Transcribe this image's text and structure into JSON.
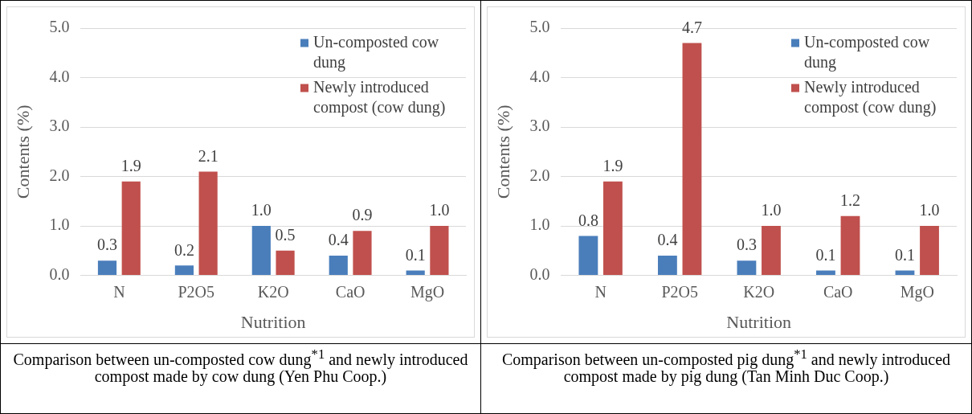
{
  "chart_data": [
    {
      "type": "bar",
      "xlabel": "Nutrition",
      "ylabel": "Contents (%)",
      "categories": [
        "N",
        "P2O5",
        "K2O",
        "CaO",
        "MgO"
      ],
      "series": [
        {
          "name": "Un-composted cow dung",
          "color": "#4a7ebb",
          "values": [
            0.3,
            0.2,
            1.0,
            0.4,
            0.1
          ],
          "value_labels": [
            "0.3",
            "0.2",
            "1.0",
            "0.4",
            "0.1"
          ]
        },
        {
          "name": "Newly introduced compost (cow dung)",
          "color": "#c0504d",
          "values": [
            1.9,
            2.1,
            0.5,
            0.9,
            1.0
          ],
          "value_labels": [
            "1.9",
            "2.1",
            "0.5",
            "0.9",
            "1.0"
          ]
        }
      ],
      "ylim": [
        0,
        5
      ],
      "yticks": [
        {
          "value": 0,
          "label": "0.0"
        },
        {
          "value": 1,
          "label": "1.0"
        },
        {
          "value": 2,
          "label": "2.0"
        },
        {
          "value": 3,
          "label": "3.0"
        },
        {
          "value": 4,
          "label": "4.0"
        },
        {
          "value": 5,
          "label": "5.0"
        }
      ],
      "grid": "y",
      "legend": "top right",
      "annotations": [
        "Comparison between un-composted cow dung$^{*1}$ and newly introduced compost made by cow dung (Yen Phu Coop.)"
      ]
    },
    {
      "type": "bar",
      "xlabel": "Nutrition",
      "ylabel": "Contents (%)",
      "categories": [
        "N",
        "P2O5",
        "K2O",
        "CaO",
        "MgO"
      ],
      "series": [
        {
          "name": "Un-composted cow dung",
          "color": "#4a7ebb",
          "values": [
            0.8,
            0.4,
            0.3,
            0.1,
            0.1
          ],
          "value_labels": [
            "0.8",
            "0.4",
            "0.3",
            "0.1",
            "0.1"
          ]
        },
        {
          "name": "Newly introduced compost (cow dung)",
          "color": "#c0504d",
          "values": [
            1.9,
            4.7,
            1.0,
            1.2,
            1.0
          ],
          "value_labels": [
            "1.9",
            "4.7",
            "1.0",
            "1.2",
            "1.0"
          ]
        }
      ],
      "ylim": [
        0,
        5
      ],
      "yticks": [
        {
          "value": 0,
          "label": "0.0"
        },
        {
          "value": 1,
          "label": "1.0"
        },
        {
          "value": 2,
          "label": "2.0"
        },
        {
          "value": 3,
          "label": "3.0"
        },
        {
          "value": 4,
          "label": "4.0"
        },
        {
          "value": 5,
          "label": "5.0"
        }
      ],
      "grid": "y",
      "legend": "top right",
      "annotations": [
        "Comparison between un-composted pig dung$^{*1}$ and newly introduced compost made by pig dung (Tan Minh Duc Coop.)"
      ]
    }
  ]
}
